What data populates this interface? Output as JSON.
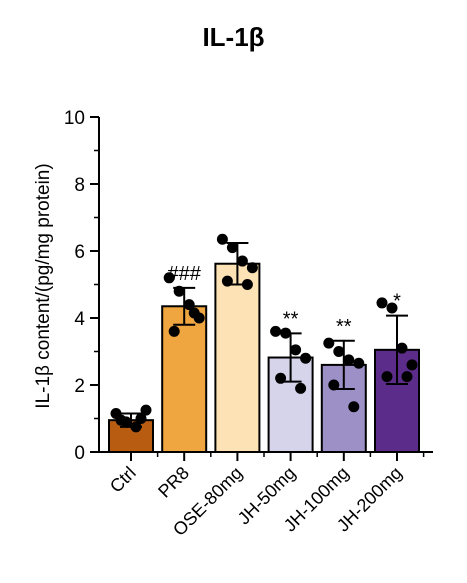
{
  "chart_data": {
    "type": "bar",
    "title": "IL-1β",
    "xlabel": "",
    "ylabel": "IL-1β content/(pg/mg protein)",
    "ylim": [
      0,
      10
    ],
    "yticks": [
      0,
      2,
      4,
      6,
      8,
      10
    ],
    "grid": false,
    "categories": [
      "Ctrl",
      "PR8",
      "OSE-80mg",
      "JH-50mg",
      "JH-100mg",
      "JH-200mg"
    ],
    "values": [
      0.95,
      4.35,
      5.62,
      2.82,
      2.6,
      3.05
    ],
    "errors": [
      0.2,
      0.55,
      0.62,
      0.72,
      0.72,
      1.02
    ],
    "colors": [
      "#b85c12",
      "#f0a640",
      "#fde2b5",
      "#d6d4ea",
      "#9d90c7",
      "#5b2c8a"
    ],
    "points": [
      [
        1.15,
        0.9,
        0.75,
        1.25,
        0.95,
        1.0
      ],
      [
        5.2,
        4.8,
        4.4,
        4.0,
        3.6,
        4.15
      ],
      [
        6.35,
        6.1,
        5.7,
        5.5,
        5.1,
        5.0
      ],
      [
        3.6,
        3.55,
        3.05,
        2.8,
        2.2,
        1.9
      ],
      [
        3.25,
        3.0,
        2.75,
        2.65,
        2.0,
        1.35
      ],
      [
        4.45,
        4.3,
        3.1,
        2.6,
        2.25,
        2.25
      ]
    ],
    "significance": [
      "",
      "###",
      "",
      "**",
      "**",
      "*"
    ]
  }
}
